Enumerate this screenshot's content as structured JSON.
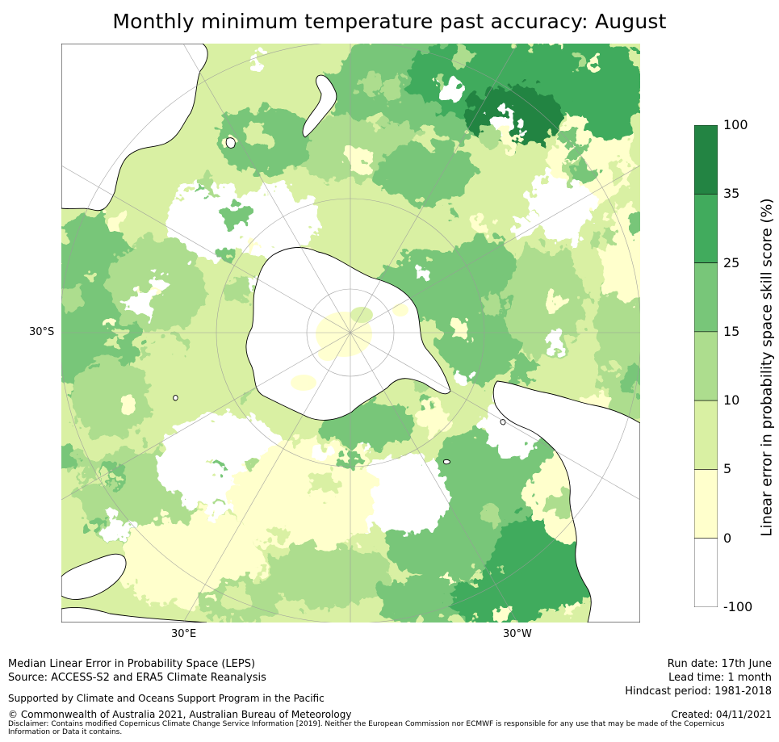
{
  "title": "Monthly minimum temperature past accuracy: August",
  "map": {
    "projection": "south-polar-stereographic",
    "lon_labels": [
      "30°E",
      "30°W"
    ],
    "lat_labels": [
      "30°S"
    ],
    "palette": {
      "lt0": "#ffffff",
      "0to5": "#ffffcc",
      "5to10": "#d9f0a3",
      "10to15": "#addd8e",
      "15to25": "#78c679",
      "25to35": "#41ab5d",
      "35to100": "#238443"
    },
    "land_color": "#ffffff",
    "coastline_color": "#000000",
    "graticule_color": "#9a9a9a"
  },
  "colorbar": {
    "label": "Linear error in probability space skill score (%)",
    "ticks": [
      "100",
      "35",
      "25",
      "15",
      "10",
      "5",
      "0",
      "-100"
    ],
    "colors": [
      "#238443",
      "#41ab5d",
      "#78c679",
      "#addd8e",
      "#d9f0a3",
      "#ffffcc",
      "#ffffff"
    ]
  },
  "footer": {
    "line1": "Median Linear Error in Probability Space (LEPS)",
    "line2": "Source: ACCESS-S2 and ERA5 Climate Reanalysis",
    "support": "Supported by Climate and Oceans Support Program in the Pacific",
    "copyright": "© Commonwealth of Australia 2021, Australian Bureau of Meteorology",
    "disclaimer": "Disclaimer: Contains modified Copernicus Climate Change Service Information [2019]. Neither the European Commission nor ECMWF is responsible for any use that may be made of the Copernicus Information or Data it contains.",
    "run_date": "Run date: 17th June",
    "lead_time": "Lead time: 1 month",
    "hindcast": "Hindcast period: 1981-2018",
    "created": "Created: 04/11/2021"
  }
}
